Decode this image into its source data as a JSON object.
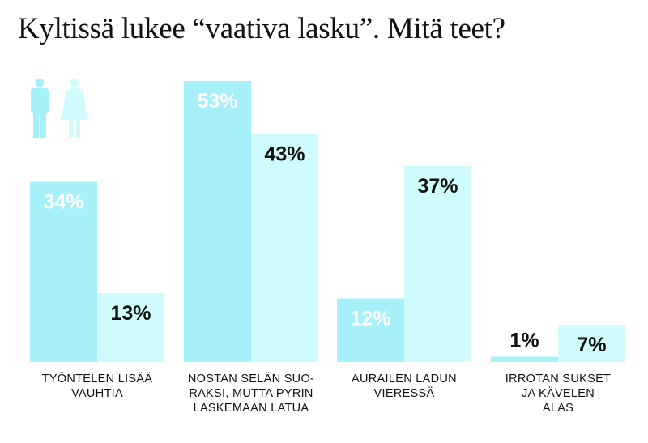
{
  "title": "Kyltissä lukee “vaativa lasku”. Mitä teet?",
  "legend": {
    "icons": [
      "male-figure-icon",
      "female-figure-icon"
    ]
  },
  "colors": {
    "men": "#a6f1f9",
    "women": "#d0fbfd",
    "label_on_men": "#ffffff",
    "label_on_women": "#111111"
  },
  "chart_data": {
    "type": "bar",
    "categories": [
      [
        "TYÖNTELEN LISÄÄ",
        "VAUHTIA"
      ],
      [
        "NOSTAN SELÄN SUO-",
        "RAKSI, MUTTA PYRIN",
        "LASKEMAAN LATUA"
      ],
      [
        "AURAILEN LADUN",
        "VIERESSÄ"
      ],
      [
        "IRROTAN SUKSET",
        "JA KÄVELEN",
        "ALAS"
      ]
    ],
    "series": [
      {
        "values": [
          34,
          53,
          12,
          1
        ],
        "labels": [
          "34%",
          "53%",
          "12%",
          "1%"
        ]
      },
      {
        "values": [
          13,
          43,
          37,
          7
        ],
        "labels": [
          "13%",
          "43%",
          "37%",
          "7%"
        ]
      }
    ],
    "ylim": [
      0,
      53
    ],
    "grid": false
  }
}
